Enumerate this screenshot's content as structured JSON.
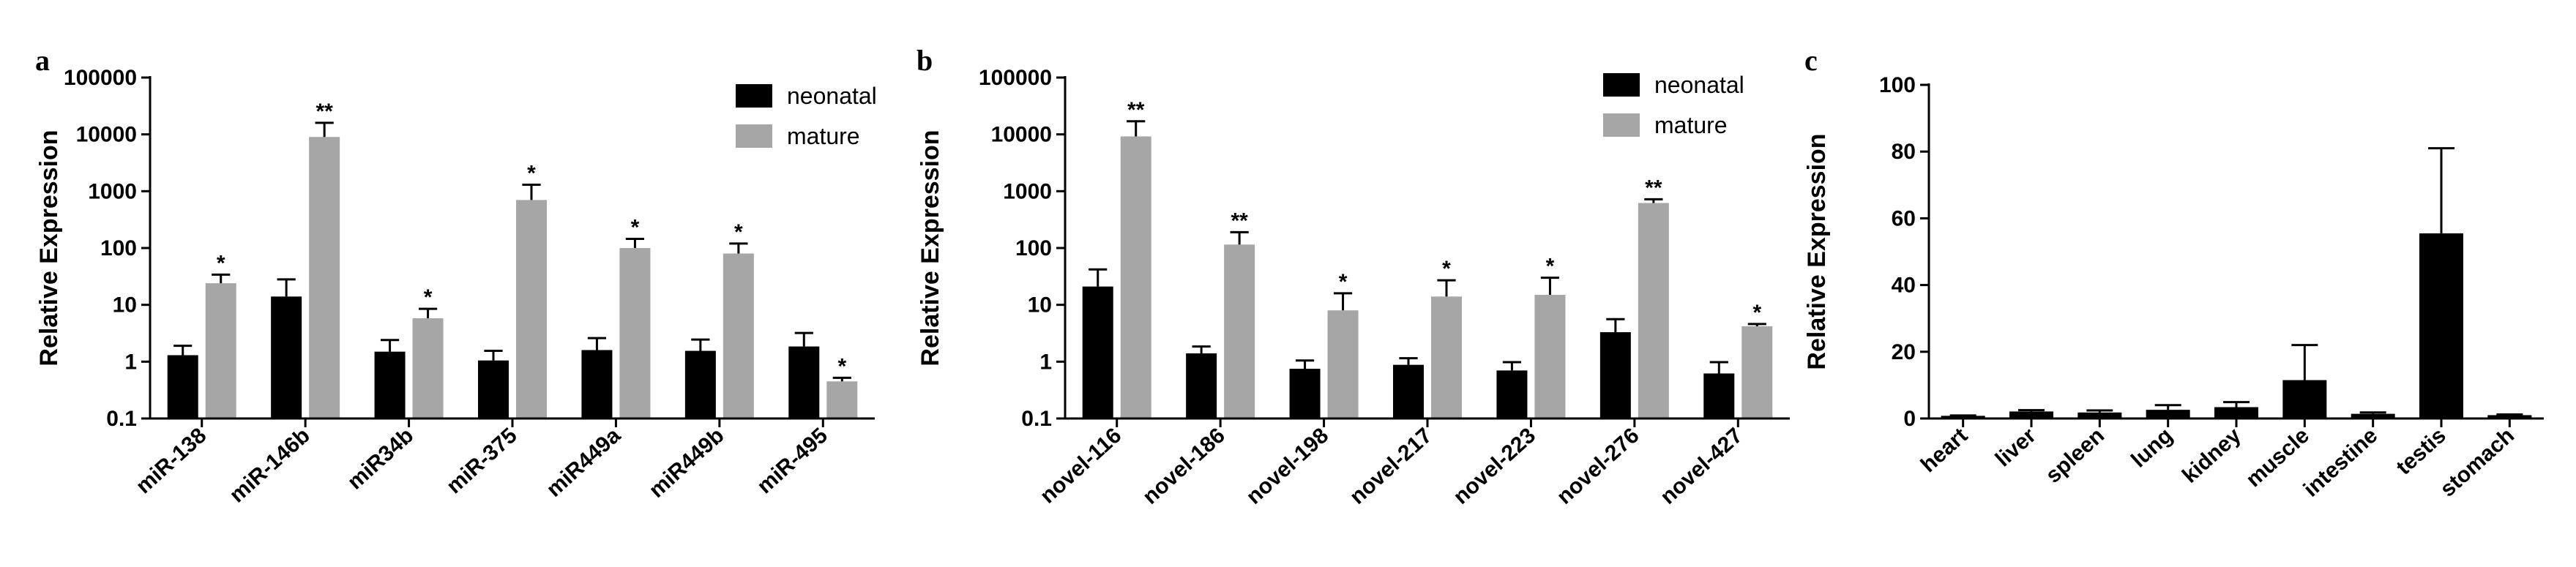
{
  "chart_data": [
    {
      "type": "bar",
      "panel_label": "a",
      "yscale": "log",
      "ylim": [
        0.1,
        100000
      ],
      "yticks": [
        "0.1",
        "1",
        "10",
        "100",
        "1000",
        "10000",
        "100000"
      ],
      "ylabel": "Relative Expression",
      "categories": [
        "miR-138",
        "miR-146b",
        "miR34b",
        "miR-375",
        "miR449a",
        "miR449b",
        "miR-495"
      ],
      "series": [
        {
          "name": "neonatal",
          "color": "#000000",
          "values": [
            1.3,
            14,
            1.5,
            1.05,
            1.6,
            1.55,
            1.85
          ],
          "errors": [
            1.9,
            28,
            2.4,
            1.55,
            2.6,
            2.45,
            3.2
          ]
        },
        {
          "name": "mature",
          "color": "#a6a6a6",
          "values": [
            24,
            9000,
            5.8,
            700,
            100,
            80,
            0.45
          ],
          "errors": [
            34,
            16000,
            8.5,
            1300,
            145,
            120,
            0.52
          ]
        }
      ],
      "significance": [
        "*",
        "**",
        "*",
        "*",
        "*",
        "*",
        "*"
      ],
      "legend_position": "top-right"
    },
    {
      "type": "bar",
      "panel_label": "b",
      "yscale": "log",
      "ylim": [
        0.1,
        100000
      ],
      "yticks": [
        "0.1",
        "1",
        "10",
        "100",
        "1000",
        "10000",
        "100000"
      ],
      "ylabel": "Relative Expression",
      "categories": [
        "novel-116",
        "novel-186",
        "novel-198",
        "novel-217",
        "novel-223",
        "novel-276",
        "novel-427"
      ],
      "series": [
        {
          "name": "neonatal",
          "color": "#000000",
          "values": [
            21,
            1.4,
            0.75,
            0.88,
            0.7,
            3.3,
            0.62
          ],
          "errors": [
            42,
            1.85,
            1.05,
            1.15,
            0.98,
            5.6,
            0.98
          ]
        },
        {
          "name": "mature",
          "color": "#a6a6a6",
          "values": [
            9200,
            115,
            8,
            14,
            15,
            620,
            4.2
          ],
          "errors": [
            17000,
            190,
            16,
            27,
            30,
            720,
            4.6
          ]
        }
      ],
      "significance": [
        "**",
        "**",
        "*",
        "*",
        "*",
        "**",
        "*"
      ],
      "legend_position": "top-right"
    },
    {
      "type": "bar",
      "panel_label": "c",
      "yscale": "linear",
      "ylim": [
        0,
        100
      ],
      "yticks": [
        "0",
        "20",
        "40",
        "60",
        "80",
        "100"
      ],
      "ylabel": "Relative Expression",
      "categories": [
        "heart",
        "liver",
        "spleen",
        "lung",
        "kidney",
        "muscle",
        "intestine",
        "testis",
        "stomach"
      ],
      "series": [
        {
          "name": "",
          "color": "#000000",
          "values": [
            0.8,
            2.1,
            1.8,
            2.6,
            3.4,
            11.5,
            1.4,
            55.5,
            1.0
          ],
          "errors": [
            0.9,
            2.5,
            2.4,
            4.0,
            4.9,
            22,
            1.8,
            81,
            1.2
          ]
        }
      ]
    }
  ]
}
